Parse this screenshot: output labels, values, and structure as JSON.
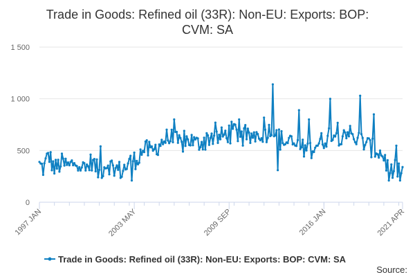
{
  "chart_data": {
    "type": "line",
    "title_lines": [
      "Trade in Goods: Refined oil (33R): Non-EU: Exports: BOP:",
      "CVM: SA"
    ],
    "xlabel": "",
    "ylabel": "",
    "ylim": [
      0,
      1500
    ],
    "y_ticks": [
      0,
      500,
      1000,
      1500
    ],
    "y_tick_labels": [
      "0",
      "500",
      "1 000",
      "1 500"
    ],
    "x_tick_labels": [
      "1997 JAN",
      "2003 MAY",
      "2009 SEP",
      "2016 JAN",
      "2021 APR"
    ],
    "x_range": [
      "1997 JAN",
      "2021 APR"
    ],
    "grid": true,
    "legend_position": "bottom-center",
    "series": [
      {
        "name": "Trade in Goods: Refined oil (33R): Non-EU: Exports: BOP: CVM: SA",
        "color": "#0f80c2",
        "frequency": "monthly",
        "start": "1997 JAN",
        "anchors_year_value": [
          [
            1997.0,
            360
          ],
          [
            1997.3,
            320
          ],
          [
            1997.6,
            470
          ],
          [
            1998.0,
            320
          ],
          [
            1998.5,
            380
          ],
          [
            1999.0,
            340
          ],
          [
            1999.5,
            420
          ],
          [
            2000.0,
            300
          ],
          [
            2000.5,
            400
          ],
          [
            2001.0,
            280
          ],
          [
            2001.5,
            380
          ],
          [
            2002.0,
            330
          ],
          [
            2002.5,
            300
          ],
          [
            2003.0,
            380
          ],
          [
            2003.5,
            420
          ],
          [
            2004.0,
            520
          ],
          [
            2004.5,
            480
          ],
          [
            2005.0,
            560
          ],
          [
            2005.5,
            620
          ],
          [
            2006.0,
            600
          ],
          [
            2006.5,
            560
          ],
          [
            2007.0,
            610
          ],
          [
            2007.5,
            560
          ],
          [
            2008.0,
            600
          ],
          [
            2008.5,
            640
          ],
          [
            2009.0,
            620
          ],
          [
            2009.5,
            660
          ],
          [
            2010.0,
            700
          ],
          [
            2010.5,
            620
          ],
          [
            2011.0,
            620
          ],
          [
            2011.5,
            660
          ],
          [
            2012.0,
            660
          ],
          [
            2012.5,
            700
          ],
          [
            2013.0,
            620
          ],
          [
            2013.5,
            580
          ],
          [
            2014.0,
            560
          ],
          [
            2014.5,
            520
          ],
          [
            2015.0,
            500
          ],
          [
            2015.5,
            560
          ],
          [
            2016.0,
            600
          ],
          [
            2016.5,
            680
          ],
          [
            2017.0,
            640
          ],
          [
            2017.5,
            700
          ],
          [
            2018.0,
            620
          ],
          [
            2018.5,
            600
          ],
          [
            2019.0,
            540
          ],
          [
            2019.5,
            500
          ],
          [
            2020.0,
            450
          ],
          [
            2020.4,
            280
          ],
          [
            2020.8,
            320
          ],
          [
            2021.25,
            320
          ]
        ],
        "highlights_year_value": [
          [
            1997.5,
            470
          ],
          [
            2001.1,
            540
          ],
          [
            2003.2,
            210
          ],
          [
            2006.0,
            800
          ],
          [
            2010.3,
            800
          ],
          [
            2012.6,
            1140
          ],
          [
            2012.9,
            310
          ],
          [
            2014.3,
            890
          ],
          [
            2015.0,
            800
          ],
          [
            2016.4,
            1000
          ],
          [
            2018.4,
            1030
          ],
          [
            2019.3,
            850
          ],
          [
            2020.35,
            210
          ],
          [
            2021.1,
            210
          ],
          [
            2021.25,
            340
          ]
        ]
      }
    ]
  },
  "legend": {
    "label": "Trade in Goods: Refined oil (33R): Non-EU: Exports: BOP: CVM: SA"
  },
  "source": {
    "label": "Source:"
  }
}
